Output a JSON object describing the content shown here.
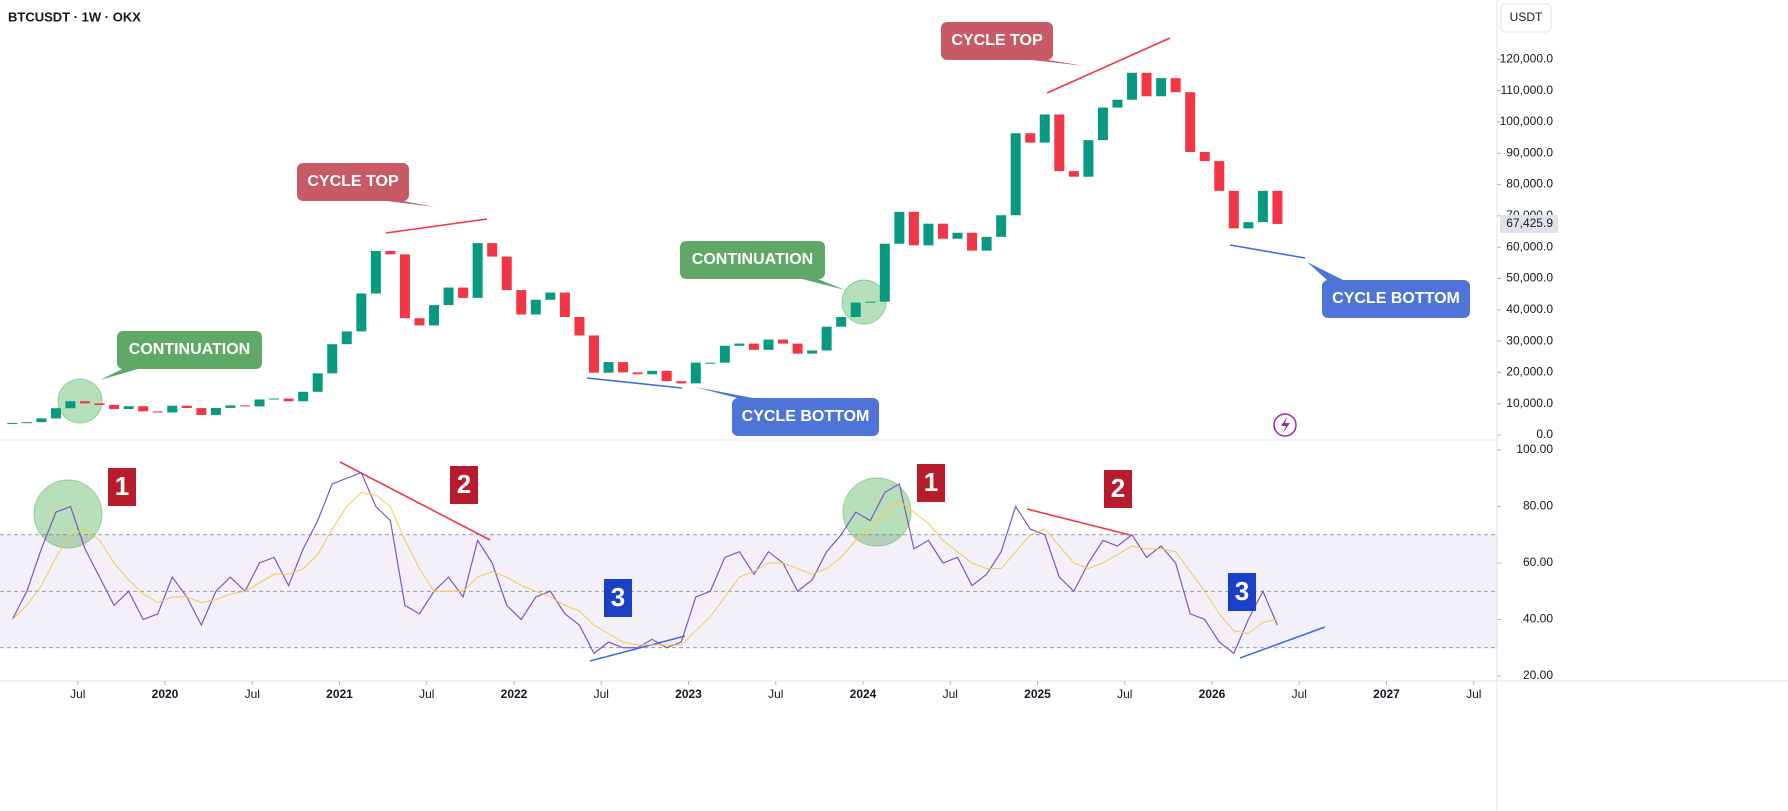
{
  "chart_data": {
    "type": "candlestick",
    "title": "BTCUSDT · 1W · OKX",
    "currency": "USDT",
    "x": [
      "2019-02",
      "2019-03",
      "2019-04",
      "2019-05",
      "2019-06",
      "2019-07",
      "2019-08",
      "2019-09",
      "2019-10",
      "2019-11",
      "2019-12",
      "2020-01",
      "2020-02",
      "2020-03",
      "2020-04",
      "2020-05",
      "2020-06",
      "2020-07",
      "2020-08",
      "2020-09",
      "2020-10",
      "2020-11",
      "2020-12",
      "2021-01",
      "2021-02",
      "2021-03",
      "2021-04",
      "2021-05",
      "2021-06",
      "2021-07",
      "2021-08",
      "2021-09",
      "2021-10",
      "2021-11",
      "2021-12",
      "2022-01",
      "2022-02",
      "2022-03",
      "2022-04",
      "2022-05",
      "2022-06",
      "2022-07",
      "2022-08",
      "2022-09",
      "2022-10",
      "2022-11",
      "2022-12",
      "2023-01",
      "2023-02",
      "2023-03",
      "2023-04",
      "2023-05",
      "2023-06",
      "2023-07",
      "2023-08",
      "2023-09",
      "2023-10",
      "2023-11",
      "2023-12",
      "2024-01",
      "2024-02",
      "2024-03",
      "2024-04",
      "2024-05",
      "2024-06",
      "2024-07",
      "2024-08",
      "2024-09",
      "2024-10",
      "2024-11",
      "2024-12",
      "2025-01",
      "2025-02",
      "2025-03",
      "2025-04",
      "2025-05",
      "2025-06",
      "2025-07",
      "2025-08",
      "2025-09",
      "2025-10",
      "2025-11",
      "2025-12",
      "2026-01",
      "2026-02",
      "2026-03",
      "2026-04",
      "2026-05"
    ],
    "close": [
      3850,
      4100,
      5300,
      8550,
      10800,
      10100,
      9600,
      8300,
      9200,
      7550,
      7200,
      9350,
      8600,
      6400,
      8650,
      9450,
      9140,
      11350,
      11650,
      10780,
      13800,
      19700,
      29000,
      33100,
      45200,
      58800,
      57700,
      37300,
      35000,
      41500,
      47100,
      43800,
      61300,
      57000,
      46300,
      38500,
      43200,
      45500,
      37700,
      31800,
      19900,
      23300,
      20000,
      19400,
      20500,
      17200,
      16500,
      23100,
      23100,
      28500,
      29200,
      27200,
      30500,
      29200,
      26000,
      27000,
      34600,
      37700,
      42300,
      42600,
      61100,
      71300,
      60600,
      67500,
      62700,
      64600,
      58900,
      63300,
      70200,
      96400,
      93400,
      102400,
      84300,
      82500,
      94200,
      104600,
      107100,
      115700,
      108200,
      114000,
      109500,
      90400,
      87500,
      78000,
      66000,
      68000,
      78000,
      67425.9
    ],
    "last_price_label": "67,425.9",
    "up_color": "#089981",
    "down_color": "#f23645",
    "ylim": [
      0,
      138000
    ],
    "yticks": [
      {
        "value": 0,
        "label": "0.0"
      },
      {
        "value": 10000,
        "label": "10,000.0"
      },
      {
        "value": 20000,
        "label": "20,000.0"
      },
      {
        "value": 30000,
        "label": "30,000.0"
      },
      {
        "value": 40000,
        "label": "40,000.0"
      },
      {
        "value": 50000,
        "label": "50,000.0"
      },
      {
        "value": 60000,
        "label": "60,000.0"
      },
      {
        "value": 70000,
        "label": "70,000.0"
      },
      {
        "value": 80000,
        "label": "80,000.0"
      },
      {
        "value": 90000,
        "label": "90,000.0"
      },
      {
        "value": 100000,
        "label": "100,000.0"
      },
      {
        "value": 110000,
        "label": "110,000.0"
      },
      {
        "value": 120000,
        "label": "120,000.0"
      }
    ],
    "xticks": [
      {
        "value": "2019-07",
        "label": "Jul"
      },
      {
        "value": "2020-01",
        "label": "2020"
      },
      {
        "value": "2020-07",
        "label": "Jul"
      },
      {
        "value": "2021-01",
        "label": "2021"
      },
      {
        "value": "2021-07",
        "label": "Jul"
      },
      {
        "value": "2022-01",
        "label": "2022"
      },
      {
        "value": "2022-07",
        "label": "Jul"
      },
      {
        "value": "2023-01",
        "label": "2023"
      },
      {
        "value": "2023-07",
        "label": "Jul"
      },
      {
        "value": "2024-01",
        "label": "2024"
      },
      {
        "value": "2024-07",
        "label": "Jul"
      },
      {
        "value": "2025-01",
        "label": "2025"
      },
      {
        "value": "2025-07",
        "label": "Jul"
      },
      {
        "value": "2026-01",
        "label": "2026"
      },
      {
        "value": "2026-07",
        "label": "Jul"
      },
      {
        "value": "2027-01",
        "label": "2027"
      },
      {
        "value": "2027-07",
        "label": "Jul"
      }
    ],
    "annotations": [
      "CONTINUATION",
      "CYCLE TOP",
      "CONTINUATION",
      "CYCLE BOTTOM",
      "CYCLE TOP",
      "CYCLE BOTTOM"
    ],
    "rsi": {
      "type": "line",
      "ylim": [
        20,
        100
      ],
      "yticks": [
        {
          "value": 20,
          "label": "20.00"
        },
        {
          "value": 40,
          "label": "40.00"
        },
        {
          "value": 60,
          "label": "60.00"
        },
        {
          "value": 80,
          "label": "80.00"
        },
        {
          "value": 100,
          "label": "100.00"
        }
      ],
      "levels": [
        30,
        50,
        70
      ],
      "series": [
        {
          "color": "#7e57c2",
          "values": [
            40,
            50,
            65,
            78,
            80,
            65,
            55,
            45,
            50,
            40,
            42,
            55,
            48,
            38,
            50,
            55,
            50,
            60,
            62,
            52,
            65,
            75,
            88,
            90,
            92,
            80,
            75,
            45,
            42,
            50,
            55,
            48,
            68,
            60,
            45,
            40,
            48,
            50,
            42,
            38,
            28,
            32,
            30,
            30,
            33,
            30,
            32,
            48,
            50,
            62,
            64,
            56,
            64,
            60,
            50,
            54,
            64,
            70,
            78,
            75,
            85,
            88,
            65,
            68,
            60,
            62,
            52,
            56,
            64,
            80,
            72,
            70,
            55,
            50,
            60,
            68,
            66,
            70,
            62,
            66,
            60,
            42,
            40,
            32,
            28,
            40,
            50,
            38
          ]
        },
        {
          "color": "#f7c948",
          "values": [
            40,
            45,
            52,
            62,
            70,
            72,
            68,
            60,
            54,
            49,
            46,
            48,
            48,
            46,
            47,
            49,
            50,
            53,
            56,
            56,
            58,
            63,
            72,
            80,
            85,
            84,
            80,
            68,
            58,
            50,
            50,
            50,
            55,
            57,
            55,
            52,
            50,
            48,
            45,
            43,
            38,
            35,
            32,
            31,
            31,
            31,
            31,
            36,
            41,
            48,
            55,
            57,
            60,
            60,
            58,
            56,
            58,
            62,
            68,
            72,
            78,
            82,
            78,
            74,
            68,
            64,
            60,
            58,
            58,
            64,
            70,
            72,
            66,
            60,
            58,
            60,
            63,
            66,
            65,
            65,
            64,
            57,
            50,
            42,
            36,
            35,
            39,
            40
          ]
        }
      ],
      "annotations": [
        "1",
        "2",
        "3",
        "1",
        "2",
        "3"
      ]
    }
  }
}
